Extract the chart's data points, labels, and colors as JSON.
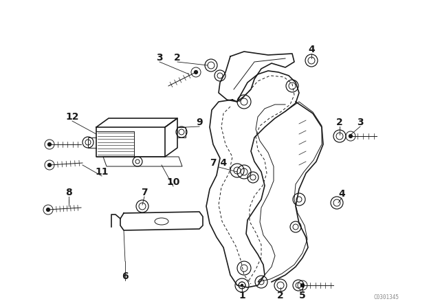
{
  "bg_color": "#ffffff",
  "line_color": "#1a1a1a",
  "fig_width": 6.4,
  "fig_height": 4.48,
  "dpi": 100,
  "catalog_number": "C0301345"
}
